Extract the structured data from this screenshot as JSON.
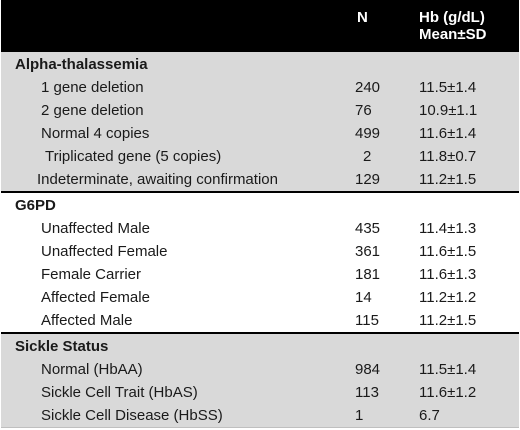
{
  "header": {
    "col_n": "N",
    "col_hb_line1": "Hb (g/dL)",
    "col_hb_line2": "Mean±SD"
  },
  "sections": [
    {
      "title": "Alpha-thalassemia",
      "rows": [
        {
          "label": "1 gene deletion",
          "n": "240",
          "hb": "11.5±1.4"
        },
        {
          "label": "2 gene deletion",
          "n": "76",
          "hb": "10.9±1.1"
        },
        {
          "label": "Normal 4 copies",
          "n": "499",
          "hb": "11.6±1.4"
        },
        {
          "label": "Triplicated gene (5 copies)",
          "n": "2",
          "hb": "11.8±0.7"
        },
        {
          "label": "Indeterminate, awaiting confirmation",
          "n": "129",
          "hb": "11.2±1.5"
        }
      ]
    },
    {
      "title": "G6PD",
      "rows": [
        {
          "label": "Unaffected Male",
          "n": "435",
          "hb": "11.4±1.3"
        },
        {
          "label": "Unaffected Female",
          "n": "361",
          "hb": "11.6±1.5"
        },
        {
          "label": "Female Carrier",
          "n": "181",
          "hb": "11.6±1.3"
        },
        {
          "label": "Affected Female",
          "n": "14",
          "hb": "11.2±1.2"
        },
        {
          "label": "Affected Male",
          "n": "115",
          "hb": "11.2±1.5"
        }
      ]
    },
    {
      "title": "Sickle Status",
      "rows": [
        {
          "label": "Normal (HbAA)",
          "n": "984",
          "hb": "11.5±1.4"
        },
        {
          "label": "Sickle Cell Trait (HbAS)",
          "n": "113",
          "hb": "11.6±1.2"
        },
        {
          "label": "Sickle Cell Disease (HbSS)",
          "n": "1",
          "hb": "6.7"
        }
      ]
    }
  ]
}
